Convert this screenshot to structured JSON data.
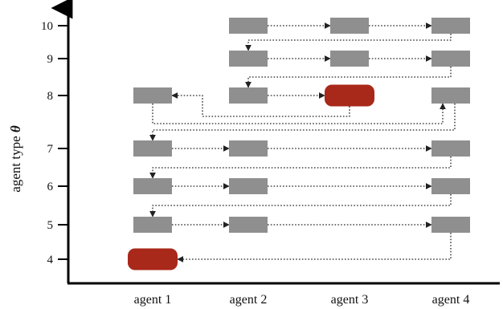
{
  "y_axis": {
    "label": "agent type",
    "symbol": "θ",
    "ticks": [
      "4",
      "5",
      "6",
      "7",
      "8",
      "9",
      "10"
    ]
  },
  "x_axis": {
    "agents": [
      "agent 1",
      "agent 2",
      "agent 3",
      "agent 4"
    ]
  },
  "colors": {
    "block": "#8f8f8f",
    "highlight": "#a8281a",
    "axis": "#000000",
    "arrow": "#222222"
  },
  "diagram": {
    "blocks": [
      {
        "agent": 2,
        "type": 10
      },
      {
        "agent": 3,
        "type": 10
      },
      {
        "agent": 4,
        "type": 10
      },
      {
        "agent": 2,
        "type": 9
      },
      {
        "agent": 3,
        "type": 9
      },
      {
        "agent": 4,
        "type": 9
      },
      {
        "agent": 1,
        "type": 8
      },
      {
        "agent": 2,
        "type": 8
      },
      {
        "agent": 3,
        "type": 8,
        "highlight": true
      },
      {
        "agent": 4,
        "type": 8
      },
      {
        "agent": 1,
        "type": 7
      },
      {
        "agent": 2,
        "type": 7
      },
      {
        "agent": 4,
        "type": 7
      },
      {
        "agent": 1,
        "type": 6
      },
      {
        "agent": 2,
        "type": 6
      },
      {
        "agent": 4,
        "type": 6
      },
      {
        "agent": 1,
        "type": 5
      },
      {
        "agent": 2,
        "type": 5
      },
      {
        "agent": 4,
        "type": 5
      },
      {
        "agent": 1,
        "type": 4,
        "highlight": true
      }
    ]
  }
}
